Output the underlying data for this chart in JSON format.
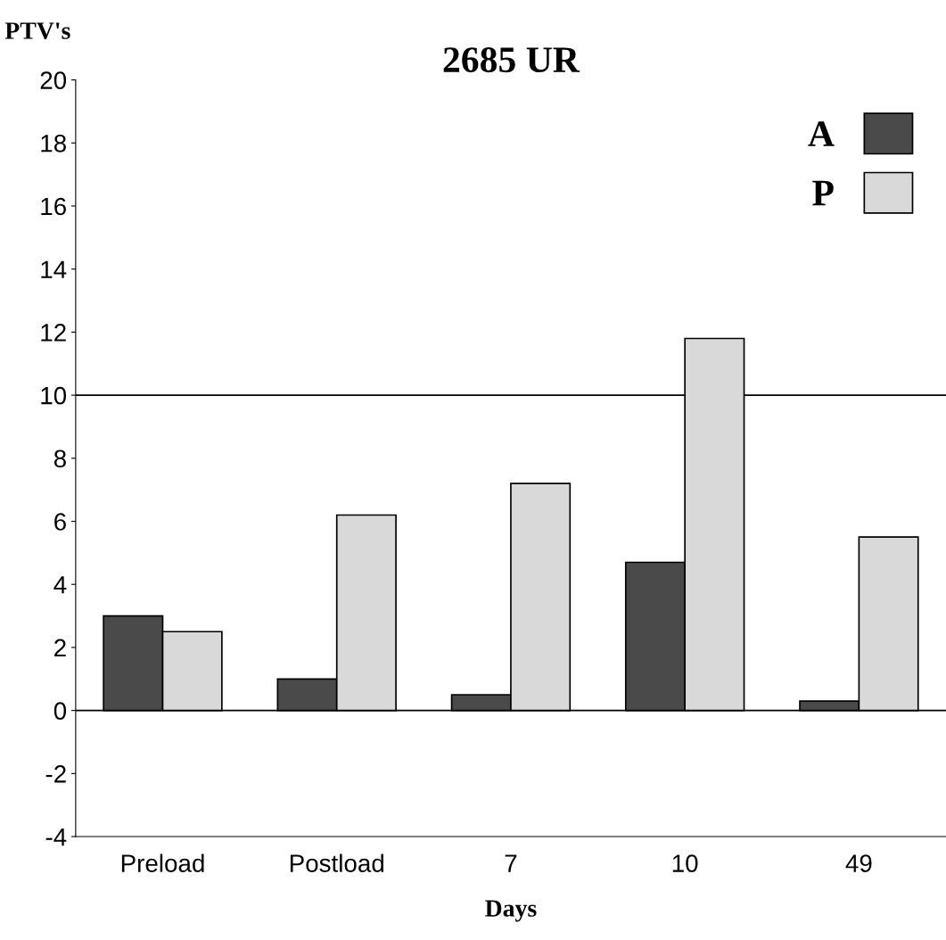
{
  "chart_data": {
    "type": "bar",
    "title": "2685 UR",
    "ylabel": "PTV's",
    "xlabel": "Days",
    "categories": [
      "Preload",
      "Postload",
      "7",
      "10",
      "49"
    ],
    "series": [
      {
        "name": "A",
        "color": "#4a4a4a",
        "values": [
          3.0,
          1.0,
          0.5,
          4.7,
          0.3
        ]
      },
      {
        "name": "P",
        "color": "#d9d9d9",
        "values": [
          2.5,
          6.2,
          7.2,
          11.8,
          5.5
        ]
      }
    ],
    "ylim": [
      -4,
      20
    ],
    "yticks": [
      -4,
      -2,
      0,
      2,
      4,
      6,
      8,
      10,
      12,
      14,
      16,
      18,
      20
    ],
    "ref_lines": [
      {
        "axis": "y",
        "value": 0,
        "color": "#000000"
      },
      {
        "axis": "y",
        "value": 10,
        "color": "#000000"
      }
    ],
    "legend": "top right",
    "grid": false
  }
}
